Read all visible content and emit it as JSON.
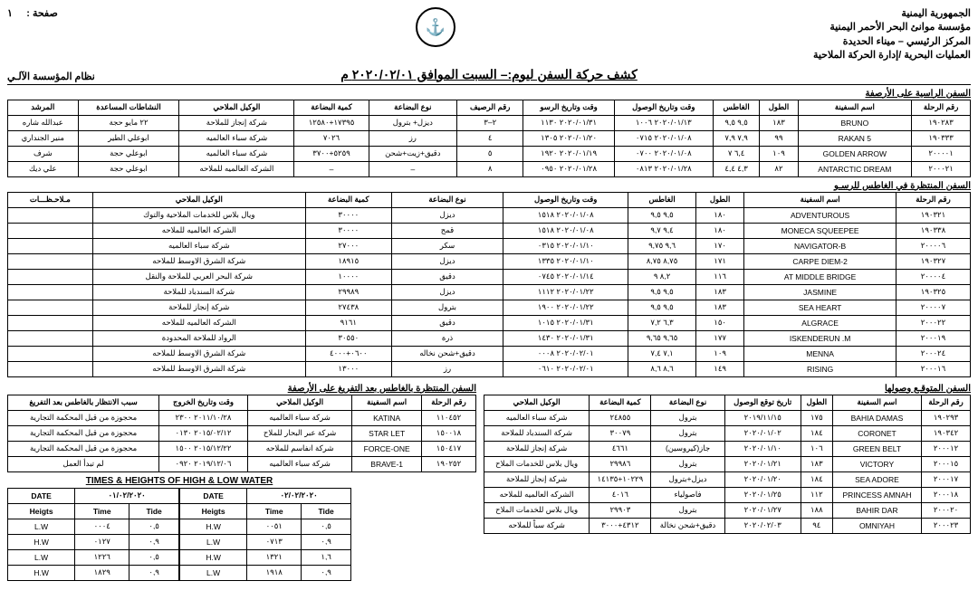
{
  "header": {
    "org1": "الجمهورية اليمنية",
    "org2": "مؤسسة موانئ البحر الأحمر اليمنية",
    "org3": "المركز الرئيسي – ميناء الحديدة",
    "org4": "العمليات البحرية /إدارة الحركة الملاحية",
    "page_label": "صفحة :",
    "page_no": "١",
    "system": "نظام المؤسسة الآلـي",
    "main_title": "كشف حركة السفن ليوم:–  السبت   الموافق  ٢٠٢٠/٠٢/٠١ م"
  },
  "sections": {
    "berthed_title": "السفن الراسية على الأرصفة",
    "waiting_title": "السفن المنتظرة في الغاطس للرسـو",
    "expected_title": "السفن المتوقـع وصولها",
    "after_discharge_title": "السفن المنتظرة بالغاطس بعد التفريغ على الأرصفة"
  },
  "berthed": {
    "cols": [
      "رقم الرحلة",
      "اسم السفينة",
      "الطول",
      "الغاطس",
      "وقت وتاريخ الوصول",
      "وقت وتاريخ الرسو",
      "رقم الرصيف",
      "نوع البضاعة",
      "كمية البضاعة",
      "الوكيل الملاحي",
      "النشاطات المساعدة",
      "المرشد"
    ],
    "rows": [
      [
        "١٩٠٢٨٣",
        "BRUNO",
        "١٨٣",
        "٩,٥  ٩,٥",
        "٢٠٢٠/٠١/١٣ ١٠٠٦",
        "٢٠٢٠/٠١/٣١ ١١٣٠",
        "٢–٣",
        "ديزل+ بترول",
        "١٧٣٩٥+١٢٥٨٠",
        "شركة إنجاز للملاحة",
        "٢٢ مايو حجة",
        "عبدالله شاره"
      ],
      [
        "١٩٠٣٣٣",
        "RAKAN 5",
        "٩٩",
        "٧,٩  ٧,٩",
        "٢٠٢٠/٠١/٠٨ ٠٧١٥",
        "٢٠٢٠/٠١/٢٠ ١٣٠٥",
        "٤",
        "رز",
        "٧٠٢٦",
        "شركة سباء العالميه",
        "ابوعلي الطير",
        "منير الجنداري"
      ],
      [
        "٢٠٠٠٠١",
        "GOLDEN  ARROW",
        "١٠٩",
        "٦,٤    ٧",
        "٢٠٢٠/٠١/٠٨ ٠٧٠٠",
        "٢٠٢٠/٠١/١٩ ١٩٢٠",
        "٥",
        "دقيق+زيت+شحن",
        "٥٢٥٩+٣٧٠٠",
        "شركة سباء العالميه",
        "ابوعلي حجة",
        "شرف"
      ],
      [
        "٢٠٠٠٢١",
        "ANTARCTIC DREAM",
        "٨٢",
        "٤,٣  ٤,٤",
        "٢٠٢٠/٠١/٢٨ ٠٨١٣",
        "٢٠٢٠/٠١/٢٨ ٠٩٥٠",
        "٨",
        "–",
        "–",
        "الشركه العالميه للملاحه",
        "ابوعلي حجة",
        "علي ديك"
      ]
    ]
  },
  "waiting": {
    "cols": [
      "رقم الرحلة",
      "اسم السفينة",
      "الطول",
      "الغاطس",
      "وقت وتاريخ الوصول",
      "نوع البضاعة",
      "كمية البضاعة",
      "الوكيل الملاحي",
      "مـلاحـظـــات"
    ],
    "rows": [
      [
        "١٩٠٣٢١",
        "ADVENTUROUS",
        "١٨٠",
        "٩,٥  ٩,٥",
        "٢٠٢٠/٠١/٠٨ ١٥١٨",
        "ديزل",
        "٣٠٠٠٠",
        "ويال بلاس للخدمات الملاحية والتوك",
        ""
      ],
      [
        "١٩٠٣٣٨",
        "MONECA SQUEEPEE",
        "١٨٠",
        "٩,٤  ٩,٧",
        "٢٠٢٠/٠١/٠٨ ١٥١٨",
        "قمح",
        "٣٠٠٠٠",
        "الشركه العالميه للملاحه",
        ""
      ],
      [
        "٢٠٠٠٠٦",
        "NAVIGATOR-B",
        "١٧٠",
        "٩,٦  ٩,٧٥",
        "٢٠٢٠/٠١/١٠ ٠٣١٥",
        "سكر",
        "٢٧٠٠٠",
        "شركة سباء العالميه",
        ""
      ],
      [
        "١٩٠٣٢٧",
        "CARPE DIEM-2",
        "١٧١",
        "٨,٧٥ ٨,٧٥",
        "٢٠٢٠/٠١/١٠ ١٣٣٥",
        "ديزل",
        "١٨٩١٥",
        "شركة الشرق الاوسط للملاحه",
        ""
      ],
      [
        "٢٠٠٠٠٤",
        "AT MIDDLE BRIDGE",
        "١١٦",
        "٨,٢   ٩",
        "٢٠٢٠/٠١/١٤ ٠٧٤٥",
        "دقيق",
        "١٠٠٠٠",
        "شركة البحر العربي للملاحة والنقل",
        ""
      ],
      [
        "١٩٠٣٢٥",
        "JASMINE",
        "١٨٣",
        "٩,٥  ٩,٥",
        "٢٠٢٠/٠١/٢٢ ١١١٢",
        "ديزل",
        "٢٩٩٨٩",
        "شركة السندباد للملاحة",
        ""
      ],
      [
        "٢٠٠٠٠٧",
        "SEA HEART",
        "١٨٣",
        "٩,٥  ٩,٥",
        "٢٠٢٠/٠١/٢٢ ١٩٠٠",
        "بترول",
        "٢٧٤٣٨",
        "شركة إنجاز للملاحة",
        ""
      ],
      [
        "٢٠٠٠٢٢",
        "ALGRACE",
        "١٥٠",
        "٦,٣  ٧,٢",
        "٢٠٢٠/٠١/٣١ ١٠١٥",
        "دقيق",
        "٩١٦١",
        "الشركه العالميه للملاحه",
        ""
      ],
      [
        "٢٠٠٠١٩",
        "ISKENDERUN .M",
        "١٧٧",
        "٩,٦٥ ٩,٦٥",
        "٢٠٢٠/٠١/٣١ ١٤٣٠",
        "ذرة",
        "٣٠٥٥٠",
        "الرواد للملاحة المحدودة",
        ""
      ],
      [
        "٢٠٠٠٢٤",
        "MENNA",
        "١٠٩",
        "٧,١  ٧,٤",
        "٢٠٢٠/٠٢/٠١ ٠٠٠٨",
        "دقيق+شحن نخاله",
        "٠٦٠٠+٤٠٠٠",
        "شركة الشرق الاوسط للملاحه",
        ""
      ],
      [
        "٢٠٠٠١٦",
        "RISING",
        "١٤٩",
        "٨,٦  ٨,٦",
        "٢٠٢٠/٠٢/٠١ ٠٦١٠",
        "رز",
        "١٣٠٠٠",
        "شركة الشرق الاوسط للملاحه",
        ""
      ]
    ]
  },
  "expected": {
    "cols": [
      "رقم الرحلة",
      "اسم السفينة",
      "الطول",
      "تاريخ توقع الوصول",
      "نوع البضاعة",
      "كمية البضاعة",
      "الوكيل الملاحي"
    ],
    "rows": [
      [
        "١٩٠٢٩٣",
        "BAHIA DAMAS",
        "١٧٥",
        "٢٠١٩/١١/١٥",
        "بترول",
        "٢٤٨٥٥",
        "شركة سباء العالميه"
      ],
      [
        "١٩٠٣٤٢",
        "CORONET",
        "١٨٤",
        "٢٠٢٠/٠١/٠٢",
        "بترول",
        "٣٠٠٧٩",
        "شركة السندباد للملاحة"
      ],
      [
        "٢٠٠٠١٢",
        "GREEN BELT",
        "١٠٦",
        "٢٠٢٠/٠١/١٠",
        "جاز(كيروسين)",
        "٤٦٦١",
        "شركة إنجاز للملاحة"
      ],
      [
        "٢٠٠٠١٥",
        "VICTORY",
        "١٨٣",
        "٢٠٢٠/٠١/٢١",
        "بترول",
        "٢٩٩٨٦",
        "ويال بلاس للخدمات الملاح"
      ],
      [
        "٢٠٠٠١٧",
        "SEA ADORE",
        "١٨٤",
        "٢٠٢٠/٠١/٢٠",
        "ديزل+بترول",
        "١٠٢٢٩+١٤١٣٥",
        "شركة إنجاز للملاحة"
      ],
      [
        "٢٠٠٠١٨",
        "PRINCESS AMNAH",
        "١١٢",
        "٢٠٢٠/٠١/٢٥",
        "فاصولياء",
        "٤٠١٦",
        "الشركه العالميه للملاحه"
      ],
      [
        "٢٠٠٠٢٠",
        "BAHIR DAR",
        "١٨٨",
        "٢٠٢٠/٠١/٢٧",
        "بترول",
        "٢٩٩٠٣",
        "ويال بلاس للخدمات الملاح"
      ],
      [
        "٢٠٠٠٢٣",
        "OMNIYAH",
        "٩٤",
        "٢٠٢٠/٠٢/٠٣",
        "دقيق+شحن نخالة",
        "٤٣١٢+٣٠٠٠",
        "شركة سباً للملاحه"
      ]
    ]
  },
  "after": {
    "cols": [
      "رقم الرحلة",
      "اسم السفينة",
      "الوكيل الملاحي",
      "وقت وتاريخ الخروج",
      "سبب الانتظار بالغاطس بعد التفريغ"
    ],
    "rows": [
      [
        "١١٠٤٥٢",
        "KATINA",
        "شركة سباء العالميه",
        "٢٠١١/١٠/٢٨  ٢٣٠٠",
        "محجوزة من قبل المحكمة التجارية"
      ],
      [
        "١٥٠٠١٨",
        "STAR LET",
        "شركة عبر البحار للملاح",
        "٢٠١٥/٠٢/١٢  ٠١٣٠",
        "محجوزة من قبل المحكمة التجارية"
      ],
      [
        "١٥٠٤١٧",
        "FORCE-ONE",
        "شركة انفاسم للملاحه",
        "٢٠١٥/١٢/٢٢ ١٥٠٠",
        "محجوزة من قبل المحكمة التجارية"
      ],
      [
        "١٩٠٢٥٢",
        "BRAVE-1",
        "شركة سباء العالميه",
        "٢٠١٩/١٢/٠٦ ٠٩٢٠",
        "لم تبدأ العمل"
      ]
    ]
  },
  "tide": {
    "title": "TIMES & HEIGHTS OF HIGH & LOW WATER",
    "date1": "٠١/٠٢/٢٠٢٠",
    "date2": "٠٢/٠٢/٢٠٢٠",
    "head": [
      "DATE",
      "Heigts",
      "Time",
      "Tide"
    ],
    "rows1": [
      [
        "L.W",
        "٠٠٠٤",
        "٠,٥"
      ],
      [
        "H.W",
        "٠١٢٧",
        "٠,٩"
      ],
      [
        "L.W",
        "١٢٢٦",
        "٠,٥"
      ],
      [
        "H.W",
        "١٨٢٩",
        "٠,٩"
      ]
    ],
    "rows2": [
      [
        "H.W",
        "٠٠٥١",
        "٠,٥"
      ],
      [
        "L.W",
        "٠٧١٣",
        "٠,٩"
      ],
      [
        "H.W",
        "١٣٢١",
        "١,٦"
      ],
      [
        "L.W",
        "١٩١٨",
        "٠,٩"
      ]
    ]
  }
}
